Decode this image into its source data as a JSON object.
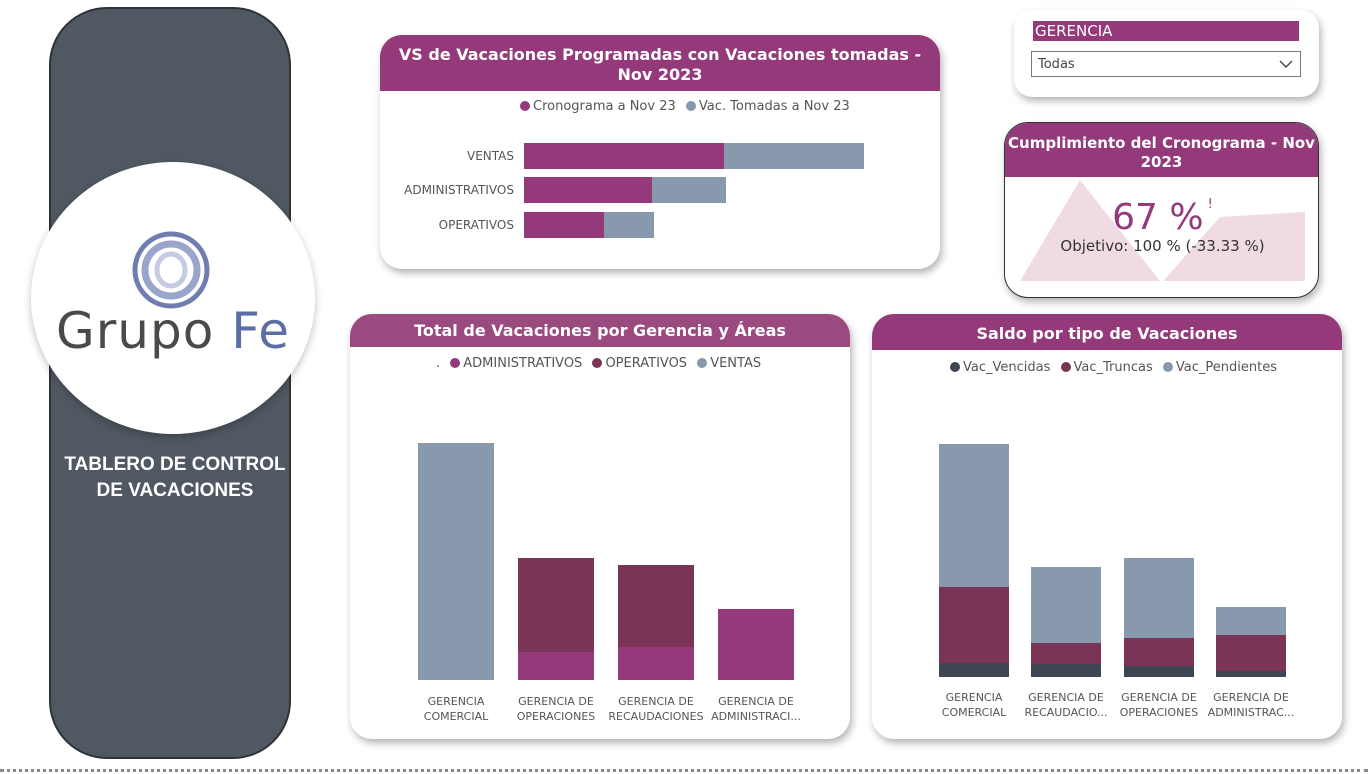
{
  "sidebar": {
    "logo_word1": "Grupo",
    "logo_word2": "Fe",
    "title_line1": "TABLERO DE CONTROL",
    "title_line2": "DE VACACIONES"
  },
  "filter": {
    "label": "GERENCIA",
    "value": "Todas"
  },
  "kpi": {
    "title": "Cumplimiento del Cronograma - Nov 2023",
    "value": "67 %",
    "alert": "!",
    "target": "Objetivo: 100 % (-33.33 %)"
  },
  "colors": {
    "accent": "#943a7b",
    "dark_purple": "#7a3556",
    "slate": "#8899ae",
    "dark": "#3d4652"
  },
  "chart_data": [
    {
      "type": "bar",
      "orientation": "horizontal",
      "stacked": true,
      "title": "VS de Vacaciones Programadas con Vacaciones tomadas - Nov 2023",
      "categories": [
        "VENTAS",
        "ADMINISTRATIVOS",
        "OPERATIVOS"
      ],
      "series": [
        {
          "name": "Cronograma a Nov 23",
          "color": "#943a7b",
          "values": [
            10,
            6.4,
            4
          ]
        },
        {
          "name": "Vac. Tomadas a Nov 23",
          "color": "#8899ae",
          "values": [
            7,
            3.7,
            2.5
          ]
        }
      ],
      "legend": "top"
    },
    {
      "type": "bar",
      "stacked": true,
      "title": "Total de Vacaciones por Gerencia y Áreas",
      "categories": [
        "GERENCIA COMERCIAL",
        "GERENCIA DE OPERACIONES",
        "GERENCIA DE RECAUDACIONES",
        "GERENCIA DE ADMINISTRACI..."
      ],
      "legend_prefix": ".",
      "series": [
        {
          "name": "ADMINISTRATIVOS",
          "color": "#943a7b",
          "values": [
            0,
            28,
            33,
            71
          ]
        },
        {
          "name": "OPERATIVOS",
          "color": "#7a3556",
          "values": [
            0,
            94,
            82,
            0
          ]
        },
        {
          "name": "VENTAS",
          "color": "#8899ae",
          "values": [
            237,
            0,
            0,
            0
          ]
        }
      ],
      "ylim": [
        0,
        237
      ],
      "legend": "top"
    },
    {
      "type": "bar",
      "stacked": true,
      "title": "Saldo por tipo de Vacaciones",
      "categories": [
        "GERENCIA COMERCIAL",
        "GERENCIA DE RECAUDACIO...",
        "GERENCIA DE OPERACIONES",
        "GERENCIA DE ADMINISTRAC..."
      ],
      "series": [
        {
          "name": "Vac_Vencidas",
          "color": "#3d4652",
          "values": [
            14,
            13,
            11,
            6
          ]
        },
        {
          "name": "Vac_Truncas",
          "color": "#7a3556",
          "values": [
            76,
            21,
            28,
            36
          ]
        },
        {
          "name": "Vac_Pendientes",
          "color": "#8899ae",
          "values": [
            143,
            76,
            80,
            28
          ]
        }
      ],
      "ylim": [
        0,
        233
      ],
      "legend": "top"
    }
  ]
}
